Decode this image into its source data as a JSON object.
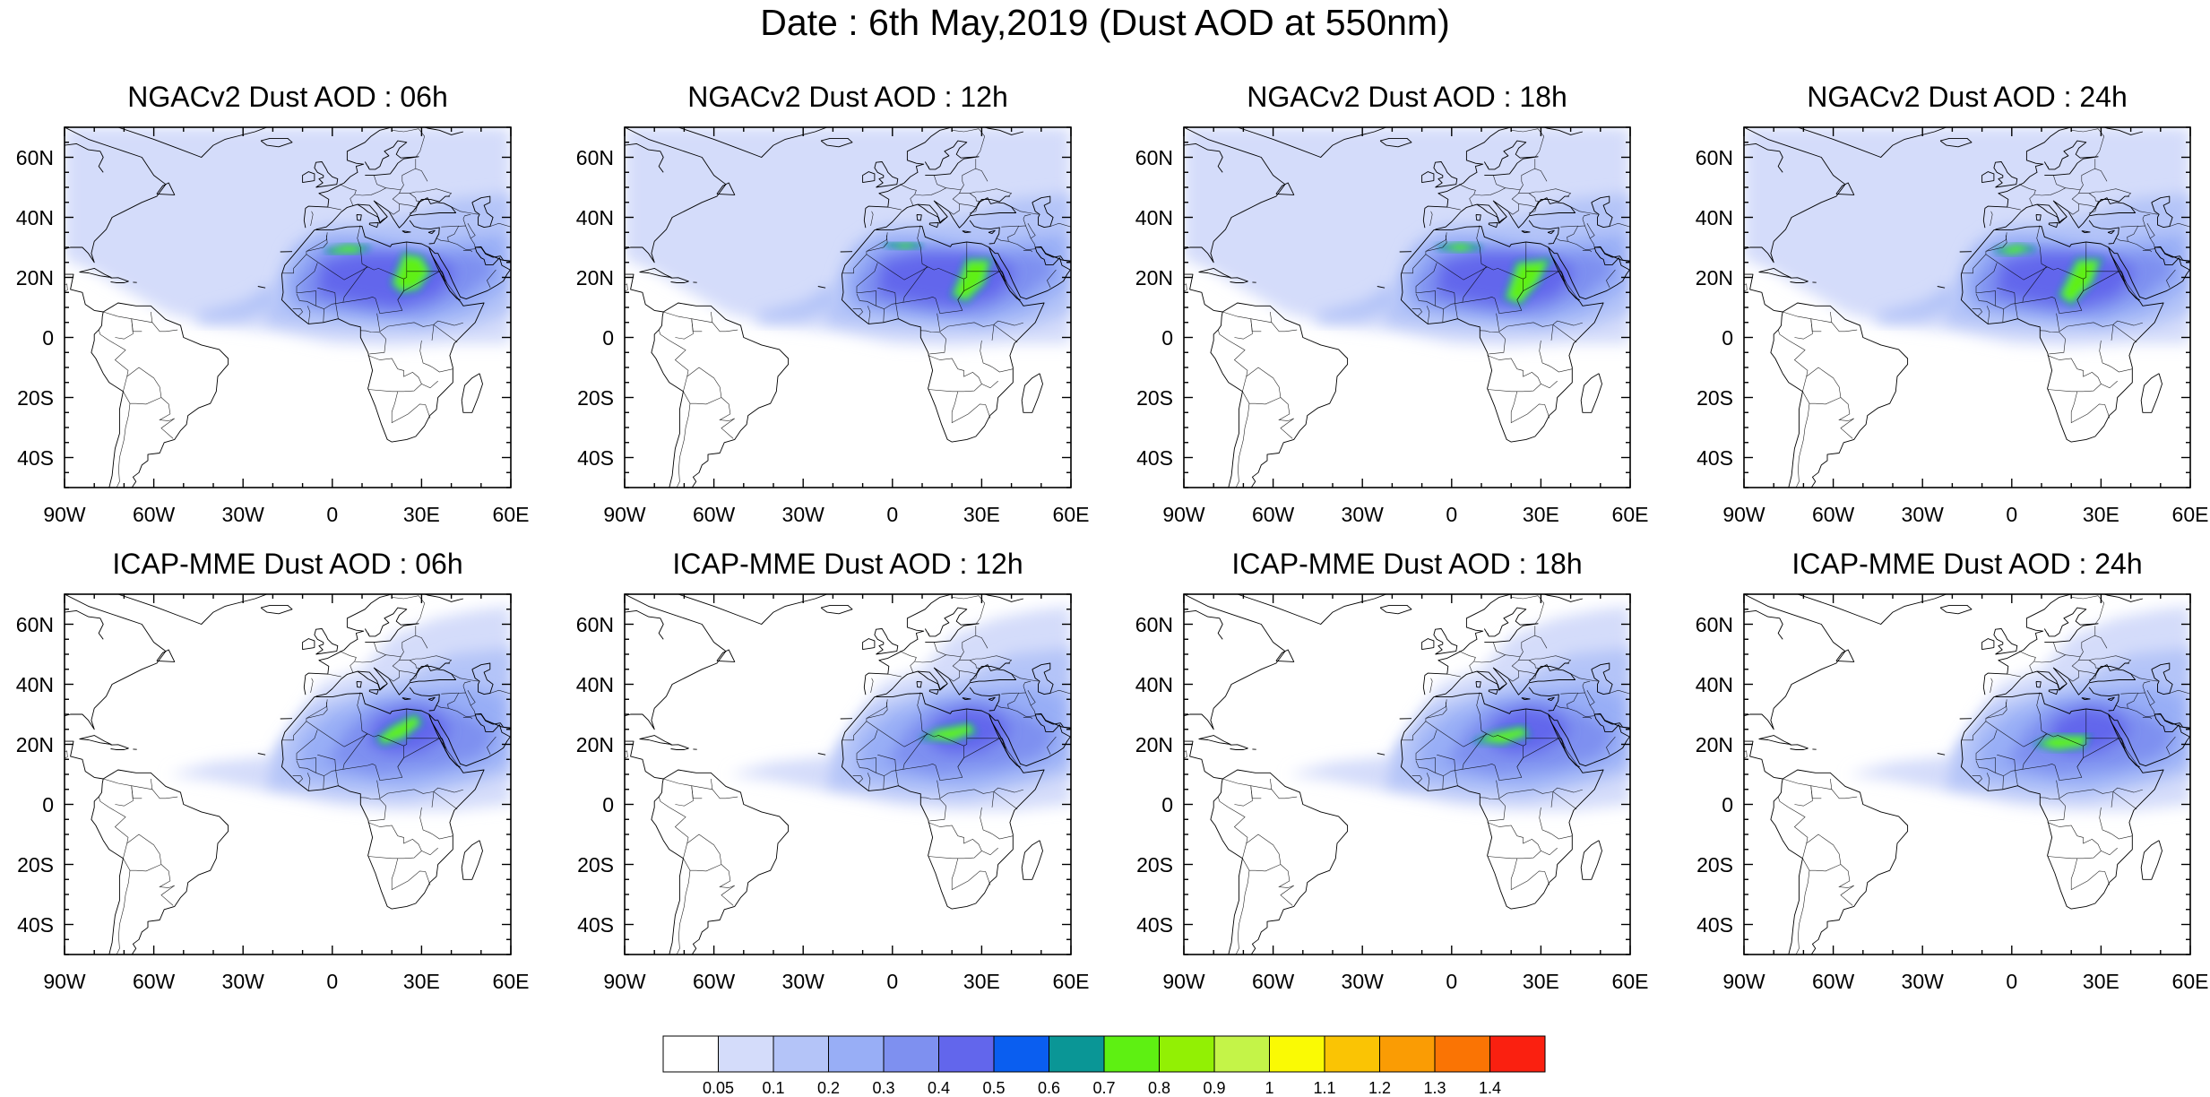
{
  "figure": {
    "title": "Date : 6th May,2019 (Dust AOD at 550nm)"
  },
  "map": {
    "lon_range": [
      -90,
      60
    ],
    "lat_range": [
      -50,
      70
    ],
    "lat_ticks": [
      "60N",
      "40N",
      "20N",
      "0",
      "20S",
      "40S"
    ],
    "lon_ticks": [
      "90W",
      "60W",
      "30W",
      "0",
      "30E",
      "60E"
    ]
  },
  "panels": [
    {
      "title": "NGACv2 Dust AOD : 06h",
      "model": "NGACv2",
      "hour": "06h"
    },
    {
      "title": "NGACv2 Dust AOD : 12h",
      "model": "NGACv2",
      "hour": "12h"
    },
    {
      "title": "NGACv2 Dust AOD : 18h",
      "model": "NGACv2",
      "hour": "18h"
    },
    {
      "title": "NGACv2 Dust AOD : 24h",
      "model": "NGACv2",
      "hour": "24h"
    },
    {
      "title": "ICAP-MME Dust AOD : 06h",
      "model": "ICAP-MME",
      "hour": "06h"
    },
    {
      "title": "ICAP-MME Dust AOD : 12h",
      "model": "ICAP-MME",
      "hour": "12h"
    },
    {
      "title": "ICAP-MME Dust AOD : 18h",
      "model": "ICAP-MME",
      "hour": "18h"
    },
    {
      "title": "ICAP-MME Dust AOD : 24h",
      "model": "ICAP-MME",
      "hour": "24h"
    }
  ],
  "colorbar": {
    "labels": [
      "0.05",
      "0.1",
      "0.2",
      "0.3",
      "0.4",
      "0.5",
      "0.6",
      "0.7",
      "0.8",
      "0.9",
      "1",
      "1.1",
      "1.2",
      "1.3",
      "1.4"
    ],
    "colors": [
      "#ffffff",
      "#d4dcfa",
      "#b4c4f8",
      "#98aef6",
      "#7e90f0",
      "#6266ec",
      "#0a5ef0",
      "#0a9696",
      "#5ef012",
      "#92f004",
      "#c4f448",
      "#fafa04",
      "#fac404",
      "#fa9c04",
      "#fa7404",
      "#fa2010"
    ]
  },
  "fields": {
    "ngac": [
      {
        "region": "sahara-west",
        "aod_level": 0.4
      },
      {
        "region": "sahara-east",
        "aod_level": 0.8
      },
      {
        "region": "arabia",
        "aod_level": 0.5
      },
      {
        "region": "atlantic-plume",
        "aod_level": 0.1
      }
    ],
    "icap": [
      {
        "region": "libya-egypt",
        "aod_level": 0.8
      },
      {
        "region": "arabia",
        "aod_level": 0.5
      },
      {
        "region": "atlantic-plume",
        "aod_level": 0.1
      }
    ]
  }
}
